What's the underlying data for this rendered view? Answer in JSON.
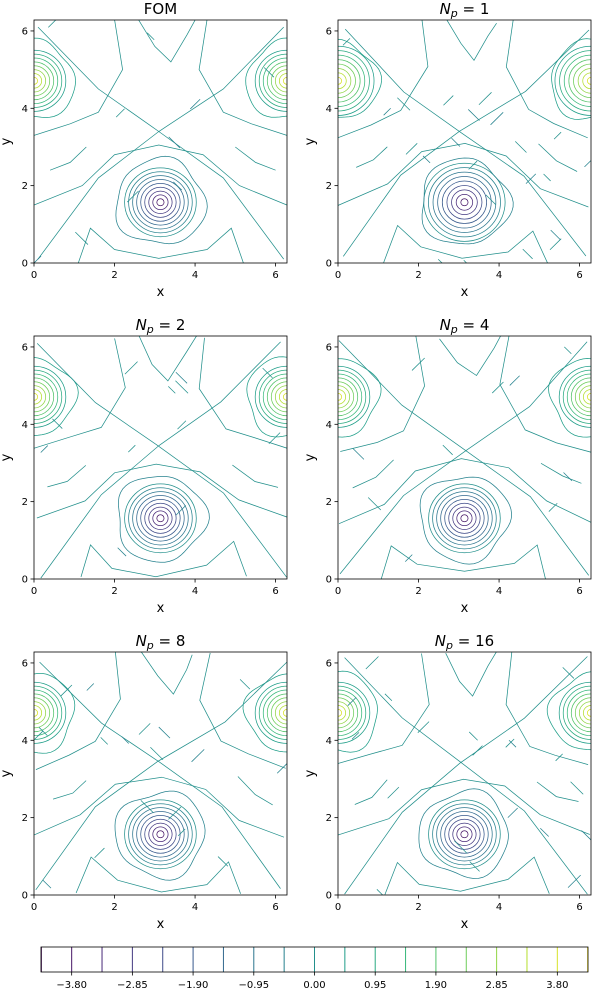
{
  "chart_data": {
    "type": "contour",
    "panels": [
      {
        "title": "FOM",
        "title_math": false,
        "np": null,
        "x_ticks": [
          "0",
          "2",
          "4",
          "6"
        ],
        "y_ticks": [
          "0",
          "2",
          "4",
          "6"
        ],
        "xlabel": "x",
        "ylabel": "y",
        "xlim": [
          0,
          6.283
        ],
        "ylim": [
          0,
          6.283
        ]
      },
      {
        "title": "N_p = 1",
        "title_math": true,
        "np": "1",
        "x_ticks": [
          "0",
          "2",
          "4",
          "6"
        ],
        "y_ticks": [
          "0",
          "2",
          "4",
          "6"
        ],
        "xlabel": "x",
        "ylabel": "y",
        "xlim": [
          0,
          6.283
        ],
        "ylim": [
          0,
          6.283
        ]
      },
      {
        "title": "N_p = 2",
        "title_math": true,
        "np": "2",
        "x_ticks": [
          "0",
          "2",
          "4",
          "6"
        ],
        "y_ticks": [
          "0",
          "2",
          "4",
          "6"
        ],
        "xlabel": "x",
        "ylabel": "y",
        "xlim": [
          0,
          6.283
        ],
        "ylim": [
          0,
          6.283
        ]
      },
      {
        "title": "N_p = 4",
        "title_math": true,
        "np": "4",
        "x_ticks": [
          "0",
          "2",
          "4",
          "6"
        ],
        "y_ticks": [
          "0",
          "2",
          "4",
          "6"
        ],
        "xlabel": "x",
        "ylabel": "y",
        "xlim": [
          0,
          6.283
        ],
        "ylim": [
          0,
          6.283
        ]
      },
      {
        "title": "N_p = 8",
        "title_math": true,
        "np": "8",
        "x_ticks": [
          "0",
          "2",
          "4",
          "6"
        ],
        "y_ticks": [
          "0",
          "2",
          "4",
          "6"
        ],
        "xlabel": "x",
        "ylabel": "y",
        "xlim": [
          0,
          6.283
        ],
        "ylim": [
          0,
          6.283
        ]
      },
      {
        "title": "N_p = 16",
        "title_math": true,
        "np": "16",
        "x_ticks": [
          "0",
          "2",
          "4",
          "6"
        ],
        "y_ticks": [
          "0",
          "2",
          "4",
          "6"
        ],
        "xlabel": "x",
        "ylabel": "y",
        "xlim": [
          0,
          6.283
        ],
        "ylim": [
          0,
          6.283
        ]
      }
    ],
    "vortices": [
      {
        "x": 3.14,
        "y": 1.57,
        "sign": -1,
        "levels": 9
      },
      {
        "x": 0.0,
        "y": 4.71,
        "sign": 1,
        "levels": 8
      },
      {
        "x": 6.283,
        "y": 4.71,
        "sign": 1,
        "levels": 8
      }
    ],
    "colorbar": {
      "colormap": "viridis",
      "vmin": -4.28,
      "vmax": 4.28,
      "levels": [
        -4.275,
        -3.8,
        -3.325,
        -2.85,
        -2.375,
        -1.9,
        -1.425,
        -0.95,
        -0.475,
        0.0,
        0.475,
        0.95,
        1.425,
        1.9,
        2.375,
        2.85,
        3.325,
        3.8,
        4.275
      ],
      "tick_labels": [
        "−3.80",
        "−2.85",
        "−1.90",
        "−0.95",
        "0.00",
        "0.95",
        "1.90",
        "2.85",
        "3.80"
      ],
      "tick_values": [
        -3.8,
        -2.85,
        -1.9,
        -0.95,
        0.0,
        0.95,
        1.9,
        2.85,
        3.8
      ]
    }
  }
}
